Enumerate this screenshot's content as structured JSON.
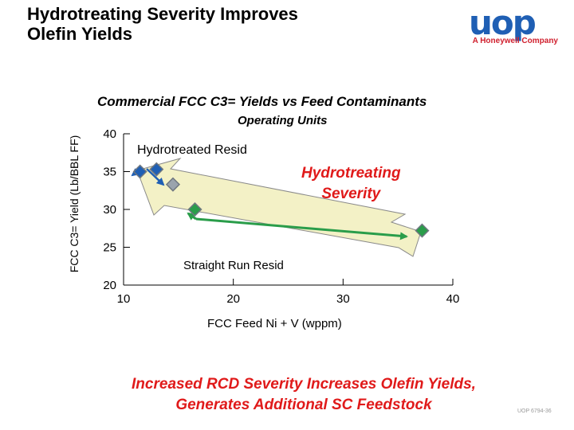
{
  "header": {
    "title_line1": "Hydrotreating Severity Improves",
    "title_line2": "Olefin Yields"
  },
  "logo": {
    "word": "uop",
    "tagline": "A Honeywell Company"
  },
  "footer": {
    "line1": "Increased RCD Severity Increases Olefin Yields,",
    "line2": "Generates Additional SC Feedstock",
    "code": "UOP 6794-36"
  },
  "colors": {
    "accent_red": "#e01a1a",
    "marker": "#2a9d4a",
    "arrow_fill": "#f3f1c6",
    "logo_blue": "#1f5fb4"
  },
  "chart_data": {
    "type": "scatter",
    "title": "Commercial FCC C3= Yields vs Feed Contaminants",
    "subtitle": "Operating Units",
    "xlabel": "FCC Feed Ni + V (wppm)",
    "ylabel": "FCC C3= Yield (Lb/BBL FF)",
    "xlim": [
      10,
      40
    ],
    "ylim": [
      20,
      40
    ],
    "xticks": [
      "10",
      "20",
      "30",
      "40"
    ],
    "yticks": [
      "20",
      "25",
      "30",
      "35",
      "40"
    ],
    "series": [
      {
        "name": "Hydrotreated Resid",
        "points": [
          [
            11.5,
            35.0
          ],
          [
            13.0,
            35.3
          ],
          [
            14.5,
            33.3
          ]
        ]
      },
      {
        "name": "Straight Run Resid",
        "points": [
          [
            16.5,
            30.0
          ],
          [
            37.2,
            27.2
          ]
        ]
      }
    ],
    "annotations": [
      {
        "text": "Hydrotreated Resid"
      },
      {
        "text_line1": "Hydrotreating",
        "text_line2": "Severity"
      },
      {
        "text": "Straight Run Resid"
      }
    ]
  }
}
